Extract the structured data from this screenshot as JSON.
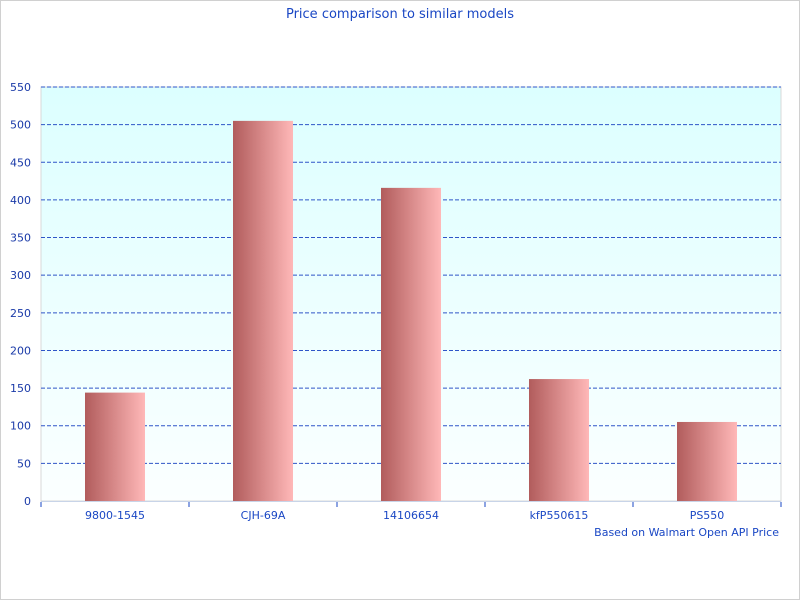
{
  "chart_data": {
    "type": "bar",
    "title": "Price comparison to similar models",
    "xlabel": "",
    "ylabel": "",
    "footnote": "Based on Walmart Open API Price",
    "categories": [
      "9800-1545",
      "CJH-69A",
      "14106654",
      "kfP550615",
      "PS550"
    ],
    "values": [
      144,
      505,
      416,
      162,
      105
    ],
    "ylim": [
      0,
      550
    ],
    "yticks": [
      0,
      50,
      100,
      150,
      200,
      250,
      300,
      350,
      400,
      450,
      500,
      550
    ],
    "grid": true,
    "legend": "none",
    "colors": {
      "text": "#1a47c4",
      "grid": "#2f55c8",
      "bar_dark": "#b15c5c",
      "bar_light": "#ffb8b8",
      "plot_top": "#dcffff",
      "plot_bottom": "#fbffff"
    }
  }
}
